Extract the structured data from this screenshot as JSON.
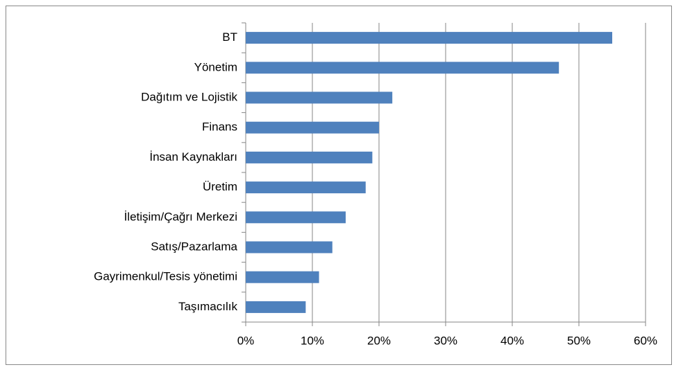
{
  "chart_data": {
    "type": "barh",
    "categories": [
      "BT",
      "Yönetim",
      "Dağıtım ve Lojistik",
      "Finans",
      "İnsan Kaynakları",
      "Üretim",
      "İletişim/Çağrı Merkezi",
      "Satış/Pazarlama",
      "Gayrimenkul/Tesis yönetimi",
      "Taşımacılık"
    ],
    "values": [
      55,
      47,
      22,
      20,
      19,
      18,
      15,
      13,
      11,
      9
    ],
    "color": "#4f81bd",
    "xlim": [
      0,
      60
    ],
    "xticks": [
      {
        "value": 0,
        "label": "0%"
      },
      {
        "value": 10,
        "label": "10%"
      },
      {
        "value": 20,
        "label": "20%"
      },
      {
        "value": 30,
        "label": "30%"
      },
      {
        "value": 40,
        "label": "40%"
      },
      {
        "value": 50,
        "label": "50%"
      },
      {
        "value": 60,
        "label": "60%"
      }
    ],
    "grid": true
  }
}
